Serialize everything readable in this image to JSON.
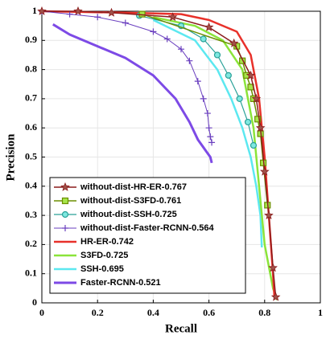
{
  "chart_data": {
    "type": "line",
    "x_label": "Recall",
    "y_label": "Precision",
    "xlim": [
      0,
      1
    ],
    "ylim": [
      0,
      1
    ],
    "xticks": [
      0,
      0.2,
      0.4,
      0.6,
      0.8,
      1
    ],
    "yticks": [
      0,
      0.1,
      0.2,
      0.3,
      0.4,
      0.5,
      0.6,
      0.7,
      0.8,
      0.9,
      1
    ],
    "grid": true,
    "legend": "lower left",
    "series": [
      {
        "name": "without-dist-HR-ER-0.767",
        "color": "#8b1c1c",
        "marker": "star",
        "width": 1.5,
        "x": [
          0,
          0.13,
          0.25,
          0.47,
          0.6,
          0.69,
          0.75,
          0.77,
          0.785,
          0.8,
          0.815,
          0.83,
          0.84
        ],
        "values": [
          1,
          1,
          0.995,
          0.98,
          0.945,
          0.89,
          0.78,
          0.7,
          0.6,
          0.45,
          0.3,
          0.12,
          0.02
        ]
      },
      {
        "name": "without-dist-S3FD-0.761",
        "color": "#6b8e00",
        "marker": "square",
        "markerFill": "#a6e64a",
        "width": 1.5,
        "x": [
          0.36,
          0.7,
          0.72,
          0.735,
          0.75,
          0.76,
          0.775,
          0.785,
          0.795,
          0.81
        ],
        "values": [
          0.99,
          0.88,
          0.83,
          0.78,
          0.74,
          0.7,
          0.63,
          0.58,
          0.48,
          0.335
        ]
      },
      {
        "name": "without-dist-SSH-0.725",
        "color": "#2aa198",
        "marker": "circle",
        "markerFill": "#7fe8e0",
        "width": 1.2,
        "x": [
          0.35,
          0.5,
          0.58,
          0.63,
          0.67,
          0.71,
          0.74,
          0.76
        ],
        "values": [
          0.985,
          0.95,
          0.905,
          0.85,
          0.78,
          0.7,
          0.62,
          0.54
        ]
      },
      {
        "name": "without-dist-Faster-RCNN-0.564",
        "color": "#6a3fbf",
        "marker": "plus",
        "width": 1,
        "x": [
          0,
          0.1,
          0.2,
          0.3,
          0.4,
          0.45,
          0.5,
          0.53,
          0.56,
          0.58,
          0.595,
          0.6,
          0.605,
          0.61
        ],
        "values": [
          1,
          0.99,
          0.98,
          0.96,
          0.93,
          0.905,
          0.87,
          0.83,
          0.76,
          0.7,
          0.65,
          0.6,
          0.57,
          0.55
        ]
      },
      {
        "name": "HR-ER-0.742",
        "color": "#e8312a",
        "width": 2.5,
        "x": [
          0,
          0.3,
          0.5,
          0.6,
          0.7,
          0.75,
          0.78,
          0.8,
          0.815,
          0.83,
          0.835
        ],
        "values": [
          1,
          0.995,
          0.99,
          0.97,
          0.93,
          0.85,
          0.7,
          0.5,
          0.3,
          0.1,
          0.02
        ]
      },
      {
        "name": "S3FD-0.725",
        "color": "#8be43a",
        "width": 2.5,
        "x": [
          0.4,
          0.55,
          0.65,
          0.72,
          0.76,
          0.78,
          0.8,
          0.83,
          0.845
        ],
        "values": [
          0.98,
          0.95,
          0.9,
          0.8,
          0.6,
          0.4,
          0.2,
          0.05,
          0.01
        ]
      },
      {
        "name": "SSH-0.695",
        "color": "#5ce8f0",
        "width": 2.5,
        "x": [
          0.4,
          0.55,
          0.63,
          0.68,
          0.72,
          0.75,
          0.77,
          0.785,
          0.79
        ],
        "values": [
          0.97,
          0.9,
          0.8,
          0.7,
          0.6,
          0.5,
          0.4,
          0.3,
          0.19
        ]
      },
      {
        "name": "Faster-RCNN-0.521",
        "color": "#7d4ae6",
        "width": 3,
        "x": [
          0.04,
          0.1,
          0.2,
          0.3,
          0.4,
          0.48,
          0.53,
          0.56,
          0.59,
          0.605,
          0.61
        ],
        "values": [
          0.955,
          0.92,
          0.88,
          0.84,
          0.78,
          0.7,
          0.62,
          0.56,
          0.52,
          0.5,
          0.48
        ]
      }
    ]
  }
}
